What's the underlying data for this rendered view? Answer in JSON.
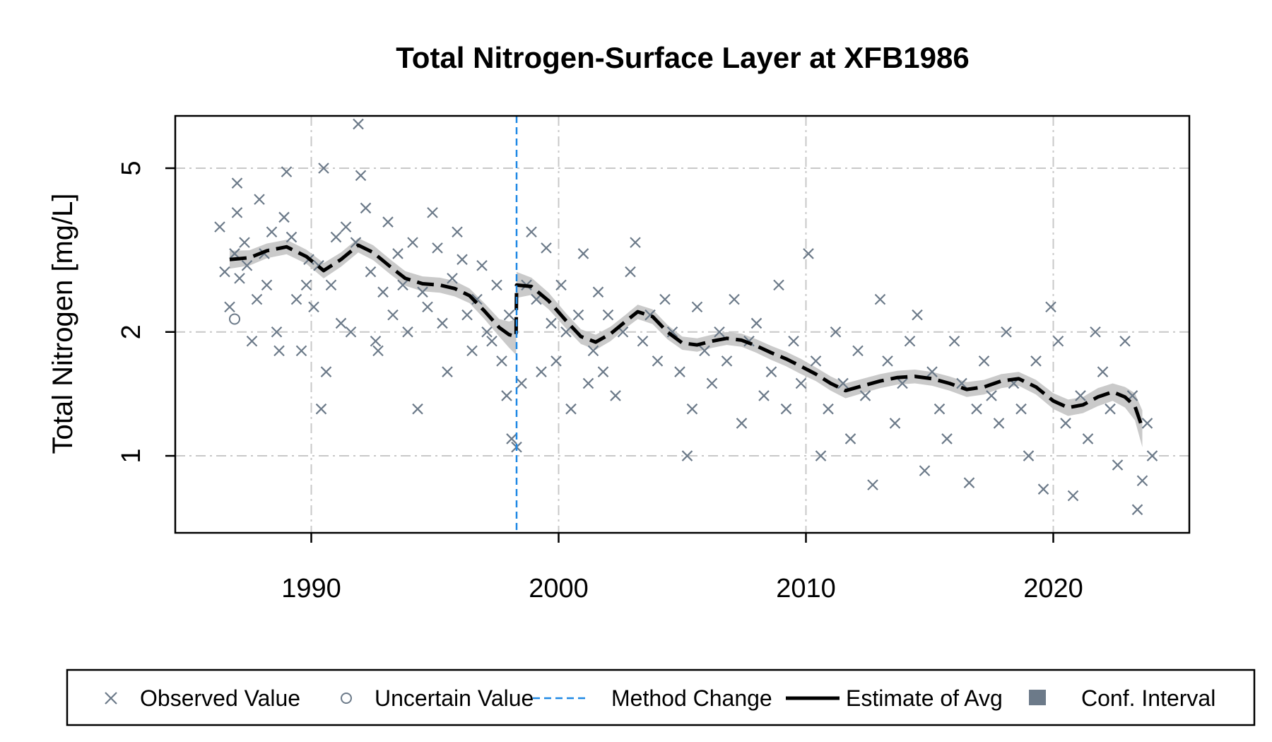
{
  "chart_data": {
    "type": "scatter",
    "title": "Total Nitrogen-Surface Layer at XFB1986",
    "xlabel": "",
    "ylabel": "Total Nitrogen [mg/L]",
    "x_axis": {
      "range": [
        1984.5,
        2025.5
      ],
      "ticks": [
        1990,
        2000,
        2010,
        2020
      ],
      "tick_labels": [
        "1990",
        "2000",
        "2010",
        "2020"
      ]
    },
    "y_axis": {
      "scale": "log",
      "range": [
        0.65,
        6.7
      ],
      "ticks": [
        1,
        2,
        5
      ],
      "tick_labels": [
        "1",
        "2",
        "5"
      ]
    },
    "grid": true,
    "method_change_year": 1998.3,
    "series": [
      {
        "name": "Observed Value",
        "kind": "points",
        "marker": "x",
        "color": "#6c7a89",
        "points": [
          [
            1986.3,
            3.6
          ],
          [
            1986.5,
            2.8
          ],
          [
            1986.7,
            2.3
          ],
          [
            1986.9,
            3.1
          ],
          [
            1987.0,
            4.6
          ],
          [
            1987.0,
            3.9
          ],
          [
            1987.1,
            2.7
          ],
          [
            1987.3,
            3.3
          ],
          [
            1987.4,
            2.9
          ],
          [
            1987.6,
            1.9
          ],
          [
            1987.8,
            2.4
          ],
          [
            1987.9,
            4.2
          ],
          [
            1988.1,
            3.1
          ],
          [
            1988.2,
            2.6
          ],
          [
            1988.4,
            3.5
          ],
          [
            1988.6,
            2.0
          ],
          [
            1988.7,
            1.8
          ],
          [
            1988.9,
            3.8
          ],
          [
            1989.0,
            4.9
          ],
          [
            1989.2,
            3.4
          ],
          [
            1989.4,
            2.4
          ],
          [
            1989.6,
            1.8
          ],
          [
            1989.8,
            2.6
          ],
          [
            1989.9,
            3.0
          ],
          [
            1990.1,
            2.3
          ],
          [
            1990.3,
            2.9
          ],
          [
            1990.5,
            5.0
          ],
          [
            1990.4,
            1.3
          ],
          [
            1990.6,
            1.6
          ],
          [
            1990.8,
            2.6
          ],
          [
            1991.0,
            3.4
          ],
          [
            1991.2,
            2.1
          ],
          [
            1991.4,
            3.6
          ],
          [
            1991.6,
            2.0
          ],
          [
            1991.8,
            3.3
          ],
          [
            1991.9,
            6.4
          ],
          [
            1992.0,
            4.8
          ],
          [
            1992.2,
            4.0
          ],
          [
            1992.4,
            2.8
          ],
          [
            1992.6,
            1.9
          ],
          [
            1992.7,
            1.8
          ],
          [
            1992.9,
            2.5
          ],
          [
            1993.1,
            3.7
          ],
          [
            1993.3,
            2.2
          ],
          [
            1993.5,
            3.1
          ],
          [
            1993.7,
            2.6
          ],
          [
            1993.9,
            2.0
          ],
          [
            1994.1,
            3.3
          ],
          [
            1994.3,
            1.3
          ],
          [
            1994.5,
            2.5
          ],
          [
            1994.7,
            2.3
          ],
          [
            1994.9,
            3.9
          ],
          [
            1995.1,
            3.2
          ],
          [
            1995.3,
            2.1
          ],
          [
            1995.5,
            1.6
          ],
          [
            1995.7,
            2.7
          ],
          [
            1995.9,
            3.5
          ],
          [
            1996.1,
            3.0
          ],
          [
            1996.3,
            2.2
          ],
          [
            1996.5,
            1.8
          ],
          [
            1996.7,
            2.4
          ],
          [
            1996.9,
            2.9
          ],
          [
            1997.1,
            2.0
          ],
          [
            1997.3,
            1.9
          ],
          [
            1997.5,
            2.6
          ],
          [
            1997.7,
            1.7
          ],
          [
            1997.9,
            1.4
          ],
          [
            1998.0,
            2.2
          ],
          [
            1998.1,
            1.1
          ],
          [
            1998.3,
            1.05
          ],
          [
            1998.5,
            1.5
          ],
          [
            1998.7,
            2.6
          ],
          [
            1998.9,
            3.5
          ],
          [
            1999.1,
            2.4
          ],
          [
            1999.3,
            1.6
          ],
          [
            1999.5,
            3.2
          ],
          [
            1999.7,
            2.1
          ],
          [
            1999.9,
            1.7
          ],
          [
            2000.1,
            2.6
          ],
          [
            2000.3,
            2.0
          ],
          [
            2000.5,
            1.3
          ],
          [
            2000.8,
            2.2
          ],
          [
            2001.0,
            3.1
          ],
          [
            2001.2,
            1.5
          ],
          [
            2001.4,
            1.8
          ],
          [
            2001.6,
            2.5
          ],
          [
            2001.8,
            1.6
          ],
          [
            2002.0,
            2.2
          ],
          [
            2002.3,
            1.4
          ],
          [
            2002.6,
            2.0
          ],
          [
            2002.9,
            2.8
          ],
          [
            2003.1,
            3.3
          ],
          [
            2003.4,
            1.9
          ],
          [
            2003.7,
            2.2
          ],
          [
            2004.0,
            1.7
          ],
          [
            2004.3,
            2.4
          ],
          [
            2004.6,
            2.0
          ],
          [
            2004.9,
            1.6
          ],
          [
            2005.2,
            1.0
          ],
          [
            2005.4,
            1.3
          ],
          [
            2005.6,
            2.3
          ],
          [
            2005.9,
            1.8
          ],
          [
            2006.2,
            1.5
          ],
          [
            2006.5,
            2.0
          ],
          [
            2006.8,
            1.7
          ],
          [
            2007.1,
            2.4
          ],
          [
            2007.4,
            1.2
          ],
          [
            2007.7,
            1.9
          ],
          [
            2008.0,
            2.1
          ],
          [
            2008.3,
            1.4
          ],
          [
            2008.6,
            1.6
          ],
          [
            2008.9,
            2.6
          ],
          [
            2009.2,
            1.3
          ],
          [
            2009.5,
            1.9
          ],
          [
            2009.8,
            1.5
          ],
          [
            2010.1,
            3.1
          ],
          [
            2010.4,
            1.7
          ],
          [
            2010.6,
            1.0
          ],
          [
            2010.9,
            1.3
          ],
          [
            2011.2,
            2.0
          ],
          [
            2011.5,
            1.5
          ],
          [
            2011.8,
            1.1
          ],
          [
            2012.1,
            1.8
          ],
          [
            2012.4,
            1.4
          ],
          [
            2012.7,
            0.85
          ],
          [
            2013.0,
            2.4
          ],
          [
            2013.3,
            1.7
          ],
          [
            2013.6,
            1.2
          ],
          [
            2013.9,
            1.5
          ],
          [
            2014.2,
            1.9
          ],
          [
            2014.5,
            2.2
          ],
          [
            2014.8,
            0.92
          ],
          [
            2015.1,
            1.6
          ],
          [
            2015.4,
            1.3
          ],
          [
            2015.7,
            1.1
          ],
          [
            2016.0,
            1.9
          ],
          [
            2016.3,
            1.5
          ],
          [
            2016.6,
            0.86
          ],
          [
            2016.9,
            1.3
          ],
          [
            2017.2,
            1.7
          ],
          [
            2017.5,
            1.4
          ],
          [
            2017.8,
            1.2
          ],
          [
            2018.1,
            2.0
          ],
          [
            2018.4,
            1.5
          ],
          [
            2018.7,
            1.3
          ],
          [
            2019.0,
            1.0
          ],
          [
            2019.3,
            1.7
          ],
          [
            2019.6,
            0.83
          ],
          [
            2019.9,
            2.3
          ],
          [
            2020.2,
            1.9
          ],
          [
            2020.5,
            1.2
          ],
          [
            2020.8,
            0.8
          ],
          [
            2021.1,
            1.4
          ],
          [
            2021.4,
            1.1
          ],
          [
            2021.7,
            2.0
          ],
          [
            2022.0,
            1.6
          ],
          [
            2022.3,
            1.3
          ],
          [
            2022.6,
            0.95
          ],
          [
            2022.9,
            1.9
          ],
          [
            2023.2,
            1.4
          ],
          [
            2023.4,
            0.74
          ],
          [
            2023.6,
            0.87
          ],
          [
            2023.8,
            1.2
          ],
          [
            2024.0,
            1.0
          ]
        ]
      },
      {
        "name": "Uncertain Value",
        "kind": "points",
        "marker": "o",
        "color": "#6c7a89",
        "points": [
          [
            1986.9,
            2.15
          ]
        ]
      },
      {
        "name": "Estimate of Avg",
        "kind": "line",
        "color": "#000000",
        "x": [
          1986.7,
          1987.5,
          1988.2,
          1989.0,
          1989.8,
          1990.5,
          1991.2,
          1991.9,
          1992.5,
          1993.2,
          1993.8,
          1994.5,
          1995.2,
          1995.8,
          1996.4,
          1997.0,
          1997.6,
          1998.0,
          1998.28,
          1998.3,
          1998.9,
          1999.6,
          2000.3,
          2000.9,
          2001.5,
          2002.1,
          2002.7,
          2003.2,
          2003.8,
          2004.4,
          2005.0,
          2005.6,
          2006.2,
          2006.8,
          2007.4,
          2008.0,
          2008.6,
          2009.2,
          2009.8,
          2010.4,
          2011.0,
          2011.6,
          2012.3,
          2013.0,
          2013.7,
          2014.4,
          2015.1,
          2015.8,
          2016.5,
          2017.2,
          2017.9,
          2018.6,
          2019.3,
          2020.0,
          2020.6,
          2021.2,
          2021.8,
          2022.4,
          2022.9,
          2023.3,
          2023.6
        ],
        "y": [
          3.0,
          3.03,
          3.15,
          3.22,
          3.05,
          2.82,
          3.0,
          3.25,
          3.12,
          2.88,
          2.7,
          2.62,
          2.6,
          2.55,
          2.45,
          2.25,
          2.05,
          1.97,
          1.95,
          2.6,
          2.58,
          2.38,
          2.13,
          1.95,
          1.89,
          1.98,
          2.12,
          2.24,
          2.18,
          2.0,
          1.88,
          1.86,
          1.9,
          1.93,
          1.91,
          1.85,
          1.78,
          1.72,
          1.65,
          1.58,
          1.5,
          1.44,
          1.48,
          1.52,
          1.55,
          1.56,
          1.54,
          1.5,
          1.45,
          1.47,
          1.52,
          1.54,
          1.47,
          1.36,
          1.31,
          1.33,
          1.39,
          1.43,
          1.39,
          1.32,
          1.17
        ]
      },
      {
        "name": "Conf. Interval",
        "kind": "band",
        "color": "#6c7a89",
        "lower": [
          2.85,
          2.9,
          3.02,
          3.09,
          2.93,
          2.7,
          2.88,
          3.12,
          2.99,
          2.76,
          2.59,
          2.51,
          2.49,
          2.44,
          2.35,
          2.15,
          1.95,
          1.83,
          1.76,
          2.42,
          2.46,
          2.27,
          2.04,
          1.87,
          1.81,
          1.9,
          2.04,
          2.15,
          2.09,
          1.92,
          1.81,
          1.79,
          1.83,
          1.86,
          1.84,
          1.78,
          1.71,
          1.65,
          1.58,
          1.52,
          1.44,
          1.38,
          1.42,
          1.46,
          1.49,
          1.5,
          1.48,
          1.44,
          1.39,
          1.41,
          1.46,
          1.48,
          1.41,
          1.3,
          1.25,
          1.27,
          1.32,
          1.36,
          1.31,
          1.22,
          1.05
        ],
        "upper": [
          3.15,
          3.16,
          3.28,
          3.35,
          3.17,
          2.94,
          3.12,
          3.38,
          3.25,
          3.0,
          2.81,
          2.73,
          2.71,
          2.66,
          2.55,
          2.35,
          2.15,
          2.12,
          2.15,
          2.8,
          2.71,
          2.49,
          2.22,
          2.03,
          1.97,
          2.06,
          2.2,
          2.33,
          2.27,
          2.08,
          1.95,
          1.93,
          1.97,
          2.0,
          1.98,
          1.92,
          1.85,
          1.79,
          1.72,
          1.64,
          1.56,
          1.5,
          1.54,
          1.58,
          1.61,
          1.62,
          1.6,
          1.56,
          1.51,
          1.53,
          1.58,
          1.6,
          1.53,
          1.42,
          1.37,
          1.39,
          1.46,
          1.5,
          1.47,
          1.42,
          1.29
        ]
      }
    ],
    "reference_lines": [
      {
        "axis": "y",
        "value": 1,
        "style": "dashdot",
        "color": "#bdbdbd"
      }
    ],
    "legend": {
      "position": "bottom",
      "entries": [
        {
          "label": "Observed Value",
          "symbol": "x"
        },
        {
          "label": "Uncertain Value",
          "symbol": "o"
        },
        {
          "label": "Method Change",
          "symbol": "dashed-line",
          "color": "#1e88e5"
        },
        {
          "label": "Estimate of Avg",
          "symbol": "thick-dashed-line",
          "color": "#000000"
        },
        {
          "label": "Conf. Interval",
          "symbol": "square",
          "color": "#6c7a89"
        }
      ]
    }
  }
}
